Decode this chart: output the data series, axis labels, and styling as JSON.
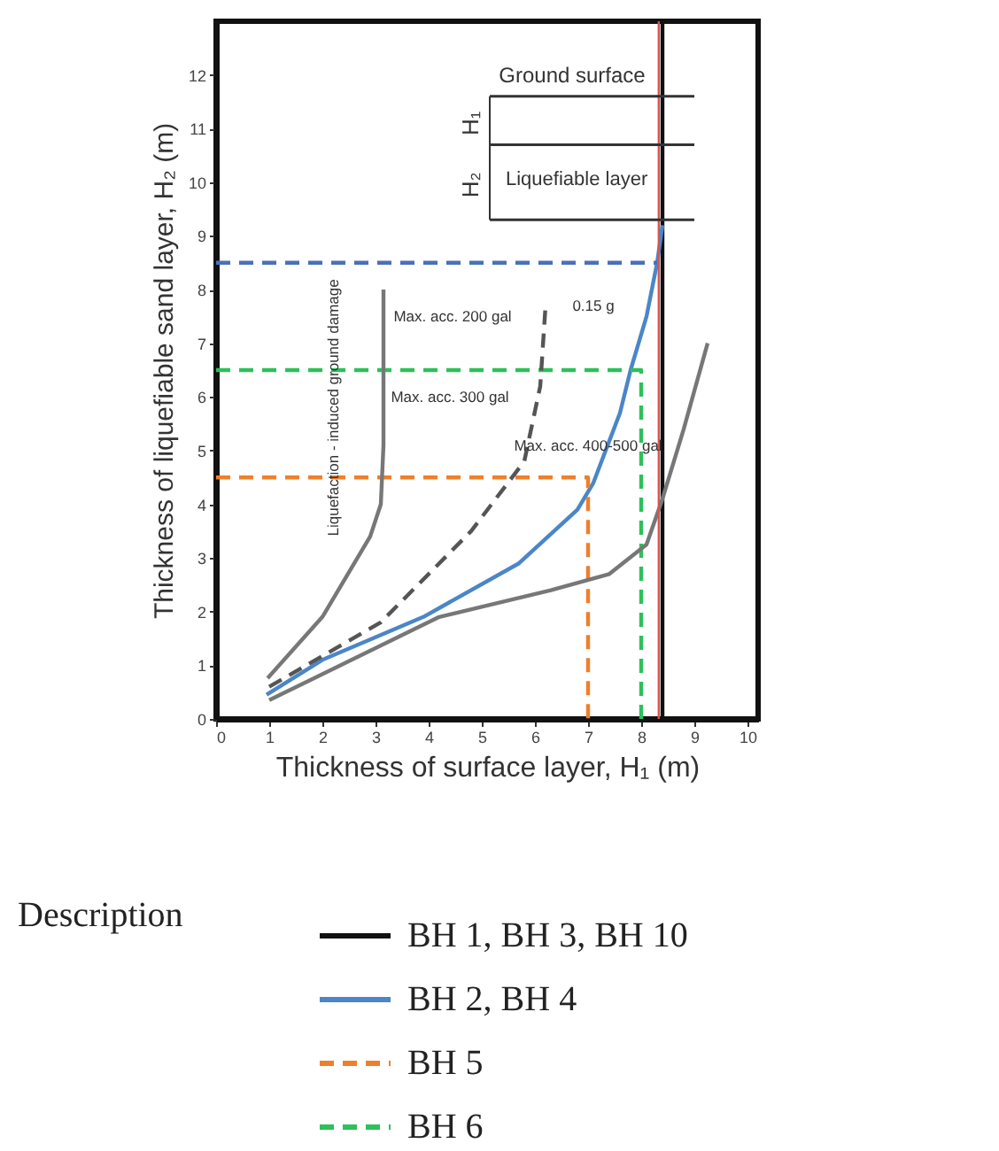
{
  "chart_data": {
    "type": "line",
    "xlabel": "Thickness of surface layer, H₁ (m)",
    "ylabel": "Thickness of liquefiable sand layer, H₂ (m)",
    "legend_title": "Description",
    "xlim": [
      0,
      10.2
    ],
    "ylim": [
      0,
      13
    ],
    "xticks": [
      0,
      1,
      2,
      3,
      4,
      5,
      6,
      7,
      8,
      9,
      10
    ],
    "yticks": [
      0,
      1,
      2,
      3,
      4,
      5,
      6,
      7,
      8,
      9,
      10,
      11,
      12
    ],
    "legend": "bottom",
    "series": [
      {
        "name": "BH 1, BH 3, BH 10",
        "color": "#111111",
        "line_style": "solid",
        "x": [
          8.4,
          8.4
        ],
        "values": [
          0,
          13
        ]
      },
      {
        "name": "BH 2, BH 4",
        "color": "#4a86c8",
        "line_style": "solid",
        "x": [
          0.95,
          2.0,
          3.9,
          5.7,
          6.8,
          7.1,
          7.6,
          7.8,
          8.1,
          8.3,
          8.4
        ],
        "values": [
          0.45,
          1.1,
          1.9,
          2.9,
          3.9,
          4.4,
          5.7,
          6.5,
          7.5,
          8.5,
          9.2
        ]
      },
      {
        "name": "BH 5",
        "color": "#f07f2a",
        "line_style": "dashed",
        "x": [
          0,
          7,
          7
        ],
        "values": [
          4.5,
          4.5,
          0
        ]
      },
      {
        "name": "BH 6",
        "color": "#2ec05a",
        "line_style": "dashed",
        "x": [
          0,
          8,
          8
        ],
        "values": [
          6.5,
          6.5,
          0
        ]
      },
      {
        "color": "#4a70b8",
        "line_style": "dashed",
        "x": [
          0,
          8.3
        ],
        "values": [
          8.5,
          8.5
        ]
      },
      {
        "color": "#777777",
        "line_style": "solid",
        "x": [
          0.97,
          2.0,
          2.9,
          3.1,
          3.15,
          3.15
        ],
        "values": [
          0.76,
          1.9,
          3.4,
          4.0,
          5.1,
          8.0
        ]
      },
      {
        "color": "#555555",
        "line_style": "dashed",
        "x": [
          1.0,
          3.1,
          4.8,
          5.8,
          6.1,
          6.2
        ],
        "values": [
          0.6,
          1.8,
          3.5,
          4.8,
          6.2,
          7.7
        ]
      },
      {
        "color": "#777777",
        "line_style": "solid",
        "x": [
          1.0,
          4.2,
          6.3,
          7.4,
          8.1,
          8.4,
          8.8,
          9.25
        ],
        "values": [
          0.35,
          1.9,
          2.4,
          2.7,
          3.25,
          4.1,
          5.4,
          7.0
        ]
      }
    ],
    "ref_lines": [
      {
        "axis": "x",
        "value": 8.33,
        "color": "#d9534f"
      }
    ],
    "annotations": [
      "Max. acc. 200 gal",
      "Max. acc. 300 gal",
      "Max. acc. 400-500 gal",
      "0.15 g",
      "Liquefaction - induced ground damage",
      "Ground surface",
      "H₁",
      "H₂",
      "Liquefiable layer"
    ]
  }
}
